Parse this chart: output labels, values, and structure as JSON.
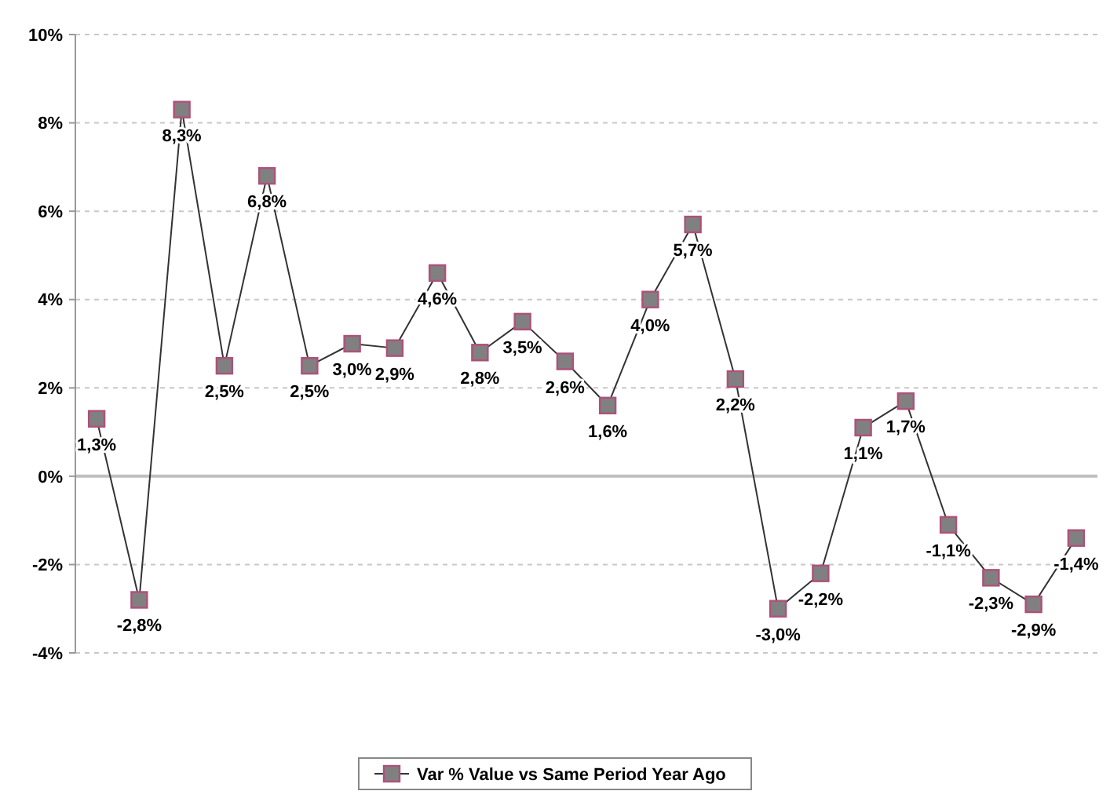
{
  "chart_data": {
    "type": "line",
    "categories": [
      null,
      null,
      null,
      null,
      null,
      null,
      null,
      null,
      null,
      null,
      null,
      null,
      null,
      null,
      null,
      null,
      null,
      null,
      null,
      null,
      null,
      null,
      null,
      null
    ],
    "series": [
      {
        "name": "Var % Value vs Same Period Year Ago",
        "color": "#808080",
        "values": [
          1.3,
          -2.8,
          8.3,
          2.5,
          6.8,
          2.5,
          3.0,
          2.9,
          4.6,
          2.8,
          3.5,
          2.6,
          1.6,
          4.0,
          5.7,
          2.2,
          -3.0,
          -2.2,
          1.1,
          1.7,
          -1.1,
          -2.3,
          -2.9,
          -1.4
        ],
        "value_labels": [
          "1,3%",
          "-2,8%",
          "8,3%",
          "2,5%",
          "6,8%",
          "2,5%",
          "3,0%",
          "2,9%",
          "4,6%",
          "2,8%",
          "3,5%",
          "2,6%",
          "1,6%",
          "4,0%",
          "5,7%",
          "2,2%",
          "-3,0%",
          "-2,2%",
          "1,1%",
          "1,7%",
          "-1,1%",
          "-2,3%",
          "-2,9%",
          "-1,4%"
        ]
      }
    ],
    "ylim": [
      -4,
      10
    ],
    "yticks": [
      {
        "value": -4,
        "label": "-4%"
      },
      {
        "value": -2,
        "label": "-2%"
      },
      {
        "value": 0,
        "label": "0%"
      },
      {
        "value": 2,
        "label": "2%"
      },
      {
        "value": 4,
        "label": "4%"
      },
      {
        "value": 6,
        "label": "6%"
      },
      {
        "value": 8,
        "label": "8%"
      },
      {
        "value": 10,
        "label": "10%"
      }
    ],
    "ref_lines": [
      {
        "axis": "y",
        "value": 0,
        "color": "#bfbfbf"
      }
    ],
    "grid": "y",
    "legend": "bottom",
    "marker": "square",
    "line_style": "solid"
  }
}
